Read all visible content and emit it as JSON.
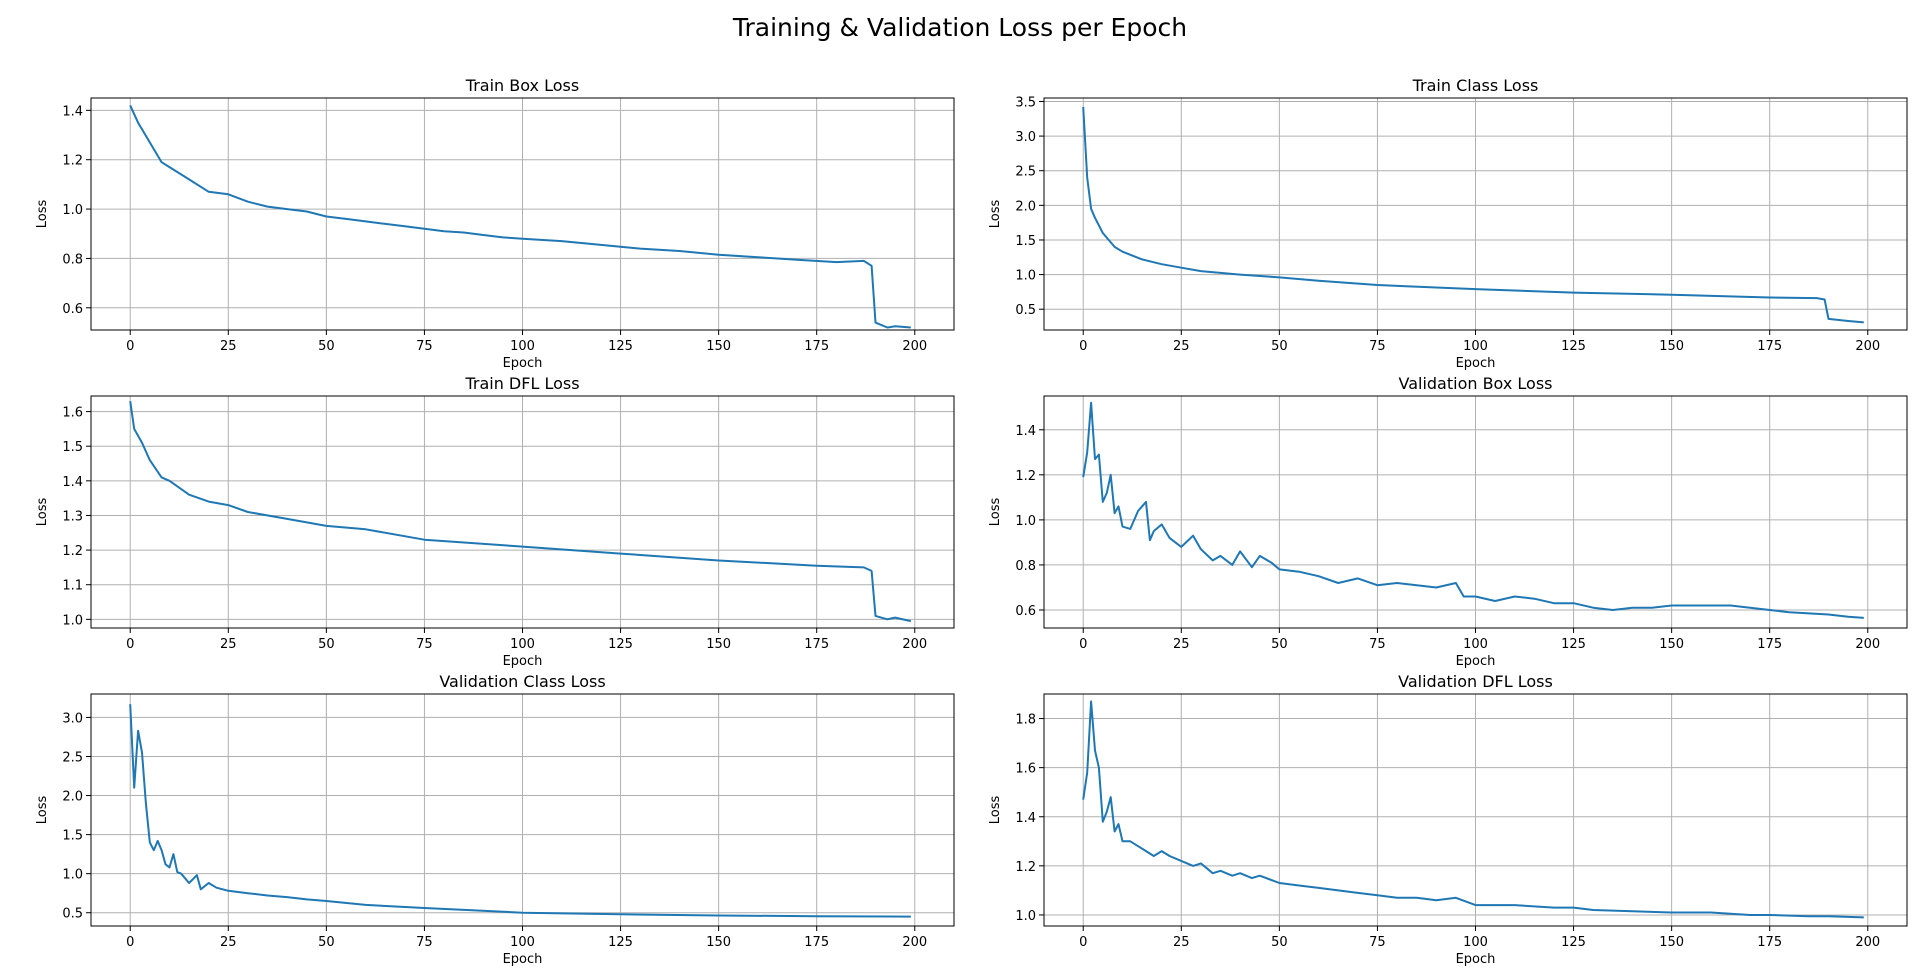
{
  "figure": {
    "title": "Training & Validation Loss per Epoch"
  },
  "colors": {
    "series": "#1f77b4",
    "grid": "#b0b0b0"
  },
  "chart_data": [
    {
      "type": "line",
      "title": "Train Box Loss",
      "xlabel": "Epoch",
      "ylabel": "Loss",
      "xlim": [
        -10,
        210
      ],
      "ylim": [
        0.51,
        1.45
      ],
      "xticks": [
        0,
        25,
        50,
        75,
        100,
        125,
        150,
        175,
        200
      ],
      "yticks": [
        0.6,
        0.8,
        1.0,
        1.2,
        1.4
      ],
      "grid": true,
      "series": [
        {
          "x": [
            0,
            2,
            5,
            8,
            10,
            15,
            20,
            25,
            30,
            35,
            40,
            45,
            50,
            55,
            60,
            65,
            70,
            75,
            80,
            85,
            90,
            95,
            100,
            110,
            120,
            130,
            140,
            150,
            160,
            170,
            180,
            187,
            189,
            190,
            193,
            195,
            199
          ],
          "values": [
            1.42,
            1.35,
            1.27,
            1.19,
            1.17,
            1.12,
            1.07,
            1.06,
            1.03,
            1.01,
            1.0,
            0.99,
            0.97,
            0.96,
            0.95,
            0.94,
            0.93,
            0.92,
            0.91,
            0.905,
            0.895,
            0.885,
            0.88,
            0.87,
            0.855,
            0.84,
            0.83,
            0.815,
            0.805,
            0.795,
            0.785,
            0.79,
            0.77,
            0.54,
            0.52,
            0.525,
            0.52
          ]
        }
      ]
    },
    {
      "type": "line",
      "title": "Train Class Loss",
      "xlabel": "Epoch",
      "ylabel": "Loss",
      "xlim": [
        -10,
        210
      ],
      "ylim": [
        0.2,
        3.55
      ],
      "xticks": [
        0,
        25,
        50,
        75,
        100,
        125,
        150,
        175,
        200
      ],
      "yticks": [
        0.5,
        1.0,
        1.5,
        2.0,
        2.5,
        3.0,
        3.5
      ],
      "grid": true,
      "series": [
        {
          "x": [
            0,
            1,
            2,
            3,
            5,
            8,
            10,
            15,
            20,
            25,
            30,
            40,
            50,
            60,
            75,
            100,
            125,
            150,
            175,
            187,
            189,
            190,
            195,
            199
          ],
          "values": [
            3.42,
            2.4,
            1.95,
            1.82,
            1.6,
            1.4,
            1.33,
            1.22,
            1.15,
            1.1,
            1.05,
            1.0,
            0.96,
            0.91,
            0.85,
            0.79,
            0.74,
            0.71,
            0.67,
            0.66,
            0.64,
            0.36,
            0.33,
            0.31
          ]
        }
      ]
    },
    {
      "type": "line",
      "title": "Train DFL Loss",
      "xlabel": "Epoch",
      "ylabel": "Loss",
      "xlim": [
        -10,
        210
      ],
      "ylim": [
        0.975,
        1.645
      ],
      "xticks": [
        0,
        25,
        50,
        75,
        100,
        125,
        150,
        175,
        200
      ],
      "yticks": [
        1.0,
        1.1,
        1.2,
        1.3,
        1.4,
        1.5,
        1.6
      ],
      "grid": true,
      "series": [
        {
          "x": [
            0,
            1,
            3,
            5,
            8,
            10,
            15,
            20,
            25,
            30,
            40,
            50,
            60,
            75,
            100,
            125,
            150,
            175,
            187,
            189,
            190,
            193,
            195,
            199
          ],
          "values": [
            1.63,
            1.55,
            1.51,
            1.46,
            1.41,
            1.4,
            1.36,
            1.34,
            1.33,
            1.31,
            1.29,
            1.27,
            1.26,
            1.23,
            1.21,
            1.19,
            1.17,
            1.155,
            1.15,
            1.14,
            1.01,
            1.0,
            1.005,
            0.995
          ]
        }
      ]
    },
    {
      "type": "line",
      "title": "Validation Box Loss",
      "xlabel": "Epoch",
      "ylabel": "Loss",
      "xlim": [
        -10,
        210
      ],
      "ylim": [
        0.52,
        1.55
      ],
      "xticks": [
        0,
        25,
        50,
        75,
        100,
        125,
        150,
        175,
        200
      ],
      "yticks": [
        0.6,
        0.8,
        1.0,
        1.2,
        1.4
      ],
      "grid": true,
      "series": [
        {
          "x": [
            0,
            1,
            2,
            3,
            4,
            5,
            6,
            7,
            8,
            9,
            10,
            12,
            14,
            16,
            17,
            18,
            20,
            22,
            25,
            28,
            30,
            33,
            35,
            38,
            40,
            43,
            45,
            48,
            50,
            55,
            60,
            65,
            70,
            75,
            80,
            85,
            90,
            95,
            97,
            100,
            105,
            110,
            115,
            120,
            125,
            130,
            135,
            140,
            145,
            150,
            155,
            160,
            165,
            170,
            175,
            180,
            185,
            190,
            195,
            199
          ],
          "values": [
            1.19,
            1.3,
            1.52,
            1.27,
            1.29,
            1.08,
            1.12,
            1.2,
            1.03,
            1.06,
            0.97,
            0.96,
            1.04,
            1.08,
            0.91,
            0.95,
            0.98,
            0.92,
            0.88,
            0.93,
            0.87,
            0.82,
            0.84,
            0.8,
            0.86,
            0.79,
            0.84,
            0.81,
            0.78,
            0.77,
            0.75,
            0.72,
            0.74,
            0.71,
            0.72,
            0.71,
            0.7,
            0.72,
            0.66,
            0.66,
            0.64,
            0.66,
            0.65,
            0.63,
            0.63,
            0.61,
            0.6,
            0.61,
            0.61,
            0.62,
            0.62,
            0.62,
            0.62,
            0.61,
            0.6,
            0.59,
            0.585,
            0.58,
            0.57,
            0.565
          ]
        }
      ]
    },
    {
      "type": "line",
      "title": "Validation Class Loss",
      "xlabel": "Epoch",
      "ylabel": "Loss",
      "xlim": [
        -10,
        210
      ],
      "ylim": [
        0.33,
        3.3
      ],
      "xticks": [
        0,
        25,
        50,
        75,
        100,
        125,
        150,
        175,
        200
      ],
      "yticks": [
        0.5,
        1.0,
        1.5,
        2.0,
        2.5,
        3.0
      ],
      "grid": true,
      "series": [
        {
          "x": [
            0,
            1,
            2,
            3,
            4,
            5,
            6,
            7,
            8,
            9,
            10,
            11,
            12,
            13,
            15,
            17,
            18,
            20,
            22,
            25,
            30,
            35,
            40,
            45,
            50,
            60,
            75,
            100,
            125,
            150,
            175,
            199
          ],
          "values": [
            3.17,
            2.1,
            2.83,
            2.55,
            1.9,
            1.4,
            1.3,
            1.42,
            1.3,
            1.12,
            1.08,
            1.25,
            1.02,
            1.0,
            0.88,
            0.98,
            0.8,
            0.88,
            0.82,
            0.78,
            0.75,
            0.72,
            0.7,
            0.67,
            0.65,
            0.6,
            0.56,
            0.5,
            0.48,
            0.465,
            0.455,
            0.45
          ]
        }
      ]
    },
    {
      "type": "line",
      "title": "Validation DFL Loss",
      "xlabel": "Epoch",
      "ylabel": "Loss",
      "xlim": [
        -10,
        210
      ],
      "ylim": [
        0.955,
        1.9
      ],
      "xticks": [
        0,
        25,
        50,
        75,
        100,
        125,
        150,
        175,
        200
      ],
      "yticks": [
        1.0,
        1.2,
        1.4,
        1.6,
        1.8
      ],
      "grid": true,
      "series": [
        {
          "x": [
            0,
            1,
            2,
            3,
            4,
            5,
            6,
            7,
            8,
            9,
            10,
            12,
            14,
            16,
            18,
            20,
            22,
            25,
            28,
            30,
            33,
            35,
            38,
            40,
            43,
            45,
            50,
            55,
            60,
            65,
            70,
            75,
            80,
            85,
            90,
            95,
            100,
            110,
            120,
            125,
            130,
            140,
            150,
            160,
            170,
            175,
            185,
            190,
            199
          ],
          "values": [
            1.47,
            1.58,
            1.87,
            1.67,
            1.6,
            1.38,
            1.42,
            1.48,
            1.34,
            1.37,
            1.3,
            1.3,
            1.28,
            1.26,
            1.24,
            1.26,
            1.24,
            1.22,
            1.2,
            1.21,
            1.17,
            1.18,
            1.16,
            1.17,
            1.15,
            1.16,
            1.13,
            1.12,
            1.11,
            1.1,
            1.09,
            1.08,
            1.07,
            1.07,
            1.06,
            1.07,
            1.04,
            1.04,
            1.03,
            1.03,
            1.02,
            1.015,
            1.01,
            1.01,
            1.0,
            1.0,
            0.995,
            0.995,
            0.99
          ]
        }
      ]
    }
  ]
}
